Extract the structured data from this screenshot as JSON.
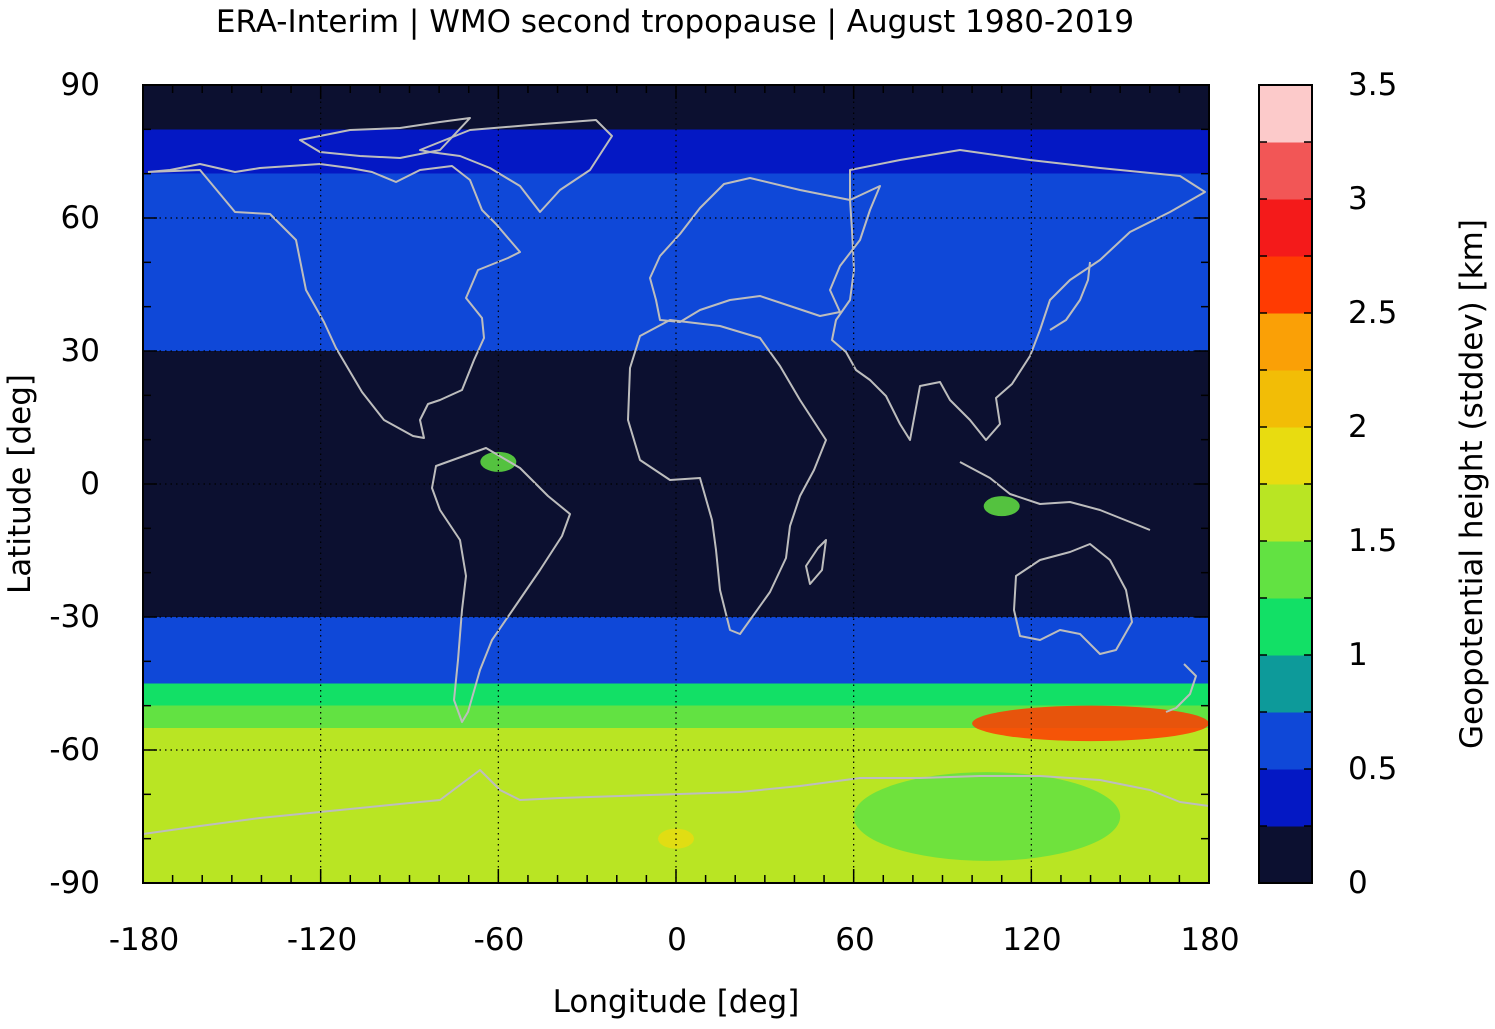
{
  "chart_data": {
    "type": "heatmap",
    "title": "ERA-Interim | WMO second tropopause | August 1980-2019",
    "xlabel": "Longitude [deg]",
    "ylabel": "Latitude [deg]",
    "colorbar_label": "Geopotential height (stddev) [km]",
    "xlim": [
      -180,
      180
    ],
    "ylim": [
      -90,
      90
    ],
    "x_ticks": [
      "-180",
      "-120",
      "-60",
      "0",
      "60",
      "120",
      "180"
    ],
    "y_ticks": [
      "90",
      "60",
      "30",
      "0",
      "-30",
      "-60",
      "-90"
    ],
    "grid": true,
    "coastlines": true,
    "colorbar": {
      "range": [
        0,
        3.5
      ],
      "ticks": [
        "3.5",
        "3",
        "2.5",
        "2",
        "1.5",
        "1",
        "0.5",
        "0"
      ],
      "colors": [
        "#0c1030",
        "#0418c4",
        "#0f48d8",
        "#0d9a9a",
        "#12e066",
        "#62e242",
        "#b9e523",
        "#e8dc10",
        "#f2bd06",
        "#faa006",
        "#ff3b02",
        "#f41a1a",
        "#f25656",
        "#fccaca"
      ]
    },
    "zonal_mean_profile": {
      "lat": [
        90,
        80,
        70,
        60,
        50,
        40,
        30,
        20,
        10,
        0,
        -10,
        -20,
        -30,
        -40,
        -45,
        -50,
        -55,
        -60,
        -70,
        -80,
        -90
      ],
      "stddev_km": [
        0.15,
        0.4,
        0.5,
        0.55,
        0.6,
        0.55,
        0.15,
        0.1,
        0.05,
        0.1,
        0.1,
        0.15,
        0.5,
        0.7,
        1.0,
        1.35,
        1.5,
        1.5,
        1.5,
        1.55,
        1.6
      ]
    },
    "features": [
      {
        "region": "southern ocean 100E-180E, 50S-58S",
        "stddev_km": 2.5
      },
      {
        "region": "antarctic plateau near 0E, 80S",
        "stddev_km": 1.8
      },
      {
        "region": "east antarctica 60E-150E, 65S-85S",
        "stddev_km": 1.4
      },
      {
        "region": "maritime continent 110E, 5S",
        "stddev_km": 1.3
      },
      {
        "region": "amazon 60W, 5N",
        "stddev_km": 1.4
      }
    ]
  }
}
